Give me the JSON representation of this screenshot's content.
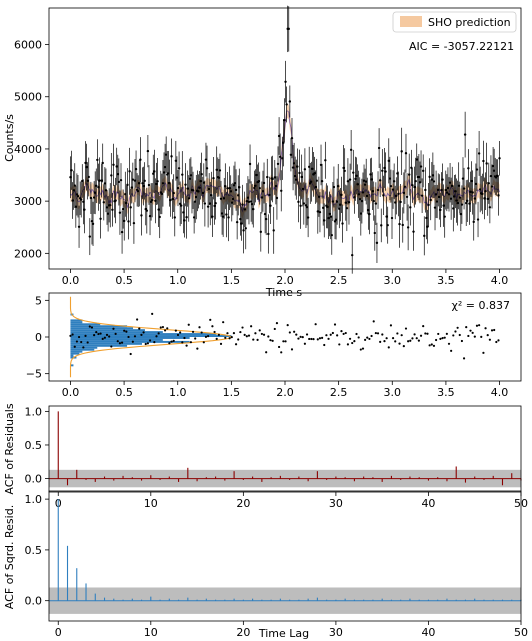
{
  "chart_data": [
    {
      "type": "scatter",
      "panel": "light-curve",
      "xlabel": "Time s",
      "ylabel": "Counts/s",
      "xlim": [
        -0.2,
        4.2
      ],
      "ylim": [
        1700,
        6700
      ],
      "xticks": [
        "0.0",
        "0.5",
        "1.0",
        "1.5",
        "2.0",
        "2.5",
        "3.0",
        "3.5",
        "4.0"
      ],
      "yticks": [
        "2000",
        "3000",
        "4000",
        "5000",
        "6000"
      ],
      "legend": {
        "placement": "top-right",
        "label": "SHO prediction",
        "color": "#f5c9a0"
      },
      "annotation": "AIC = -3057.22121",
      "baseline_counts": 3150,
      "flare": {
        "peak_time": 2.03,
        "peak_counts": 6300,
        "model_peak_counts": 4650
      },
      "typical_error": 380,
      "n_points": 400,
      "colors": {
        "points": "#000000",
        "model_band": "#f5c9a0",
        "model_line": "#7a5fa8"
      }
    },
    {
      "type": "scatter",
      "panel": "residuals",
      "xlim": [
        -0.2,
        4.2
      ],
      "ylim": [
        -6,
        6
      ],
      "xticks": [
        "0.0",
        "0.5",
        "1.0",
        "1.5",
        "2.0",
        "2.5",
        "3.0",
        "3.5",
        "4.0"
      ],
      "yticks": [
        "5",
        "0",
        "−5"
      ],
      "annotation": "χ² = 0.837",
      "histogram": {
        "orientation": "horizontal",
        "color": "#2f7fbf",
        "gaussian_color": "#f0a030"
      },
      "residual_spread": 1.0
    },
    {
      "type": "bar",
      "panel": "acf-residuals",
      "ylabel": "ACF of Residuals",
      "xlim": [
        -1,
        50
      ],
      "ylim": [
        -0.2,
        1.08
      ],
      "xticks": [
        "0",
        "10",
        "20",
        "30",
        "40",
        "50"
      ],
      "yticks": [
        "1.0",
        "0.5",
        "0.0"
      ],
      "confidence_band": 0.13,
      "color": "#8b0000",
      "lags": [
        0,
        1,
        2,
        3,
        4,
        5,
        6,
        7,
        8,
        9,
        10,
        11,
        12,
        13,
        14,
        15,
        16,
        17,
        18,
        19,
        20,
        21,
        22,
        23,
        24,
        25,
        26,
        27,
        28,
        29,
        30,
        31,
        32,
        33,
        34,
        35,
        36,
        37,
        38,
        39,
        40,
        41,
        42,
        43,
        44,
        45,
        46,
        47,
        48,
        49,
        50
      ],
      "values": [
        1.0,
        -0.1,
        0.13,
        -0.02,
        -0.05,
        0.03,
        -0.03,
        0.04,
        0.02,
        -0.03,
        0.05,
        -0.02,
        0.03,
        -0.05,
        0.16,
        -0.04,
        0.02,
        0.03,
        -0.03,
        0.11,
        -0.02,
        0.03,
        -0.05,
        0.02,
        0.04,
        -0.02,
        0.03,
        -0.04,
        0.11,
        -0.02,
        0.03,
        0.02,
        -0.04,
        0.03,
        0.02,
        -0.05,
        0.04,
        -0.02,
        0.03,
        0.02,
        -0.03,
        0.02,
        -0.04,
        0.18,
        -0.06,
        0.03,
        -0.02,
        0.04,
        -0.1,
        0.08,
        -0.03
      ]
    },
    {
      "type": "bar",
      "panel": "acf-squared-residuals",
      "xlabel": "Time Lag",
      "ylabel": "ACF of Sqrd. Resid.",
      "xlim": [
        -1,
        50
      ],
      "ylim": [
        -0.2,
        1.08
      ],
      "xticks": [
        "0",
        "10",
        "20",
        "30",
        "40",
        "50"
      ],
      "yticks": [
        "1.0",
        "0.5",
        "0.0"
      ],
      "confidence_band": 0.13,
      "color": "#2f7fbf",
      "lags": [
        0,
        1,
        2,
        3,
        4,
        5,
        6,
        7,
        8,
        9,
        10,
        11,
        12,
        13,
        14,
        15,
        16,
        17,
        18,
        19,
        20,
        21,
        22,
        23,
        24,
        25,
        26,
        27,
        28,
        29,
        30,
        31,
        32,
        33,
        34,
        35,
        36,
        37,
        38,
        39,
        40,
        41,
        42,
        43,
        44,
        45,
        46,
        47,
        48,
        49,
        50
      ],
      "values": [
        1.0,
        0.54,
        0.32,
        0.17,
        0.07,
        0.03,
        0.02,
        0.01,
        0.02,
        0.01,
        0.04,
        0.01,
        0.02,
        0.01,
        0.03,
        0.01,
        0.02,
        0.01,
        0.01,
        0.02,
        0.01,
        0.02,
        0.01,
        0.01,
        0.02,
        0.01,
        0.01,
        0.02,
        0.03,
        0.01,
        0.01,
        0.02,
        0.01,
        0.01,
        0.01,
        0.02,
        0.01,
        0.01,
        0.02,
        0.01,
        0.01,
        0.01,
        0.02,
        0.01,
        0.01,
        0.02,
        0.01,
        0.01,
        0.01,
        0.01,
        0.01
      ]
    }
  ]
}
